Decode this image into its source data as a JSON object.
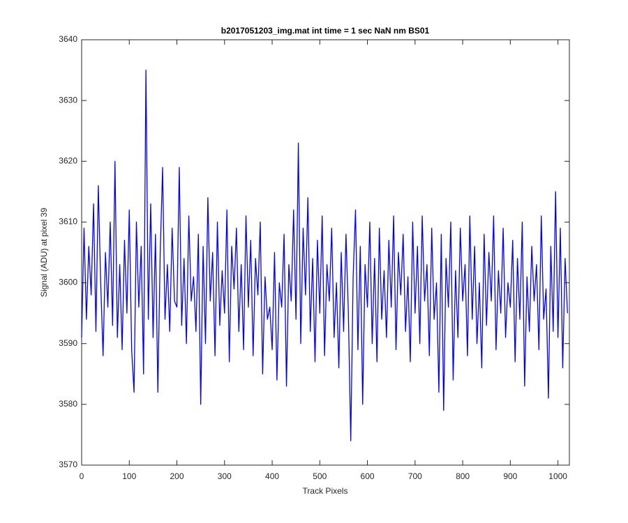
{
  "chart_data": {
    "type": "line",
    "title": "b2017051203_img.mat int time = 1 sec  NaN nm BS01",
    "xlabel": "Track Pixels",
    "ylabel": "Signal (ADU) at pixel 39",
    "color": "#0000ff",
    "grid": false,
    "xlim": [
      0,
      1024
    ],
    "ylim": [
      3570,
      3640
    ],
    "xticks": [
      0,
      100,
      200,
      300,
      400,
      500,
      600,
      700,
      800,
      900,
      1000
    ],
    "yticks": [
      3570,
      3580,
      3590,
      3600,
      3610,
      3620,
      3630,
      3640
    ],
    "x": [
      0,
      5,
      10,
      15,
      20,
      25,
      30,
      35,
      40,
      45,
      50,
      55,
      60,
      65,
      70,
      75,
      80,
      85,
      90,
      95,
      100,
      105,
      110,
      115,
      120,
      125,
      130,
      135,
      140,
      145,
      150,
      155,
      160,
      165,
      170,
      175,
      180,
      185,
      190,
      195,
      200,
      205,
      210,
      215,
      220,
      225,
      230,
      235,
      240,
      245,
      250,
      255,
      260,
      265,
      270,
      275,
      280,
      285,
      290,
      295,
      300,
      305,
      310,
      315,
      320,
      325,
      330,
      335,
      340,
      345,
      350,
      355,
      360,
      365,
      370,
      375,
      380,
      385,
      390,
      395,
      400,
      405,
      410,
      415,
      420,
      425,
      430,
      435,
      440,
      445,
      450,
      455,
      460,
      465,
      470,
      475,
      480,
      485,
      490,
      495,
      500,
      505,
      510,
      515,
      520,
      525,
      530,
      535,
      540,
      545,
      550,
      555,
      560,
      565,
      570,
      575,
      580,
      585,
      590,
      595,
      600,
      605,
      610,
      615,
      620,
      625,
      630,
      635,
      640,
      645,
      650,
      655,
      660,
      665,
      670,
      675,
      680,
      685,
      690,
      695,
      700,
      705,
      710,
      715,
      720,
      725,
      730,
      735,
      740,
      745,
      750,
      755,
      760,
      765,
      770,
      775,
      780,
      785,
      790,
      795,
      800,
      805,
      810,
      815,
      820,
      825,
      830,
      835,
      840,
      845,
      850,
      855,
      860,
      865,
      870,
      875,
      880,
      885,
      890,
      895,
      900,
      905,
      910,
      915,
      920,
      925,
      930,
      935,
      940,
      945,
      950,
      955,
      960,
      965,
      970,
      975,
      980,
      985,
      990,
      995,
      1000,
      1005,
      1010,
      1015,
      1020
    ],
    "values": [
      3591,
      3609,
      3594,
      3606,
      3598,
      3613,
      3592,
      3616,
      3600,
      3588,
      3605,
      3596,
      3610,
      3593,
      3620,
      3591,
      3603,
      3589,
      3607,
      3595,
      3612,
      3589,
      3582,
      3610,
      3596,
      3606,
      3585,
      3635,
      3594,
      3613,
      3591,
      3608,
      3582,
      3605,
      3619,
      3594,
      3603,
      3592,
      3609,
      3597,
      3596,
      3619,
      3593,
      3604,
      3590,
      3611,
      3597,
      3601,
      3592,
      3608,
      3580,
      3606,
      3590,
      3614,
      3597,
      3605,
      3588,
      3610,
      3593,
      3602,
      3595,
      3612,
      3587,
      3606,
      3599,
      3609,
      3592,
      3603,
      3589,
      3611,
      3596,
      3607,
      3588,
      3604,
      3598,
      3610,
      3585,
      3601,
      3594,
      3596,
      3589,
      3605,
      3584,
      3600,
      3596,
      3608,
      3583,
      3603,
      3597,
      3612,
      3594,
      3623,
      3590,
      3609,
      3598,
      3614,
      3592,
      3604,
      3587,
      3607,
      3595,
      3611,
      3588,
      3603,
      3597,
      3609,
      3591,
      3600,
      3586,
      3605,
      3592,
      3608,
      3595,
      3574,
      3601,
      3612,
      3589,
      3606,
      3580,
      3603,
      3596,
      3610,
      3590,
      3604,
      3587,
      3609,
      3594,
      3602,
      3591,
      3607,
      3596,
      3611,
      3589,
      3605,
      3598,
      3608,
      3592,
      3601,
      3587,
      3610,
      3595,
      3606,
      3590,
      3611,
      3597,
      3603,
      3588,
      3609,
      3594,
      3600,
      3582,
      3608,
      3579,
      3604,
      3596,
      3610,
      3584,
      3602,
      3591,
      3609,
      3597,
      3603,
      3588,
      3611,
      3594,
      3606,
      3590,
      3600,
      3586,
      3608,
      3593,
      3605,
      3597,
      3611,
      3589,
      3602,
      3595,
      3609,
      3591,
      3600,
      3596,
      3607,
      3587,
      3604,
      3594,
      3610,
      3583,
      3601,
      3592,
      3606,
      3597,
      3603,
      3589,
      3611,
      3594,
      3599,
      3581,
      3606,
      3592,
      3615,
      3591,
      3609,
      3586,
      3604,
      3595
    ]
  }
}
